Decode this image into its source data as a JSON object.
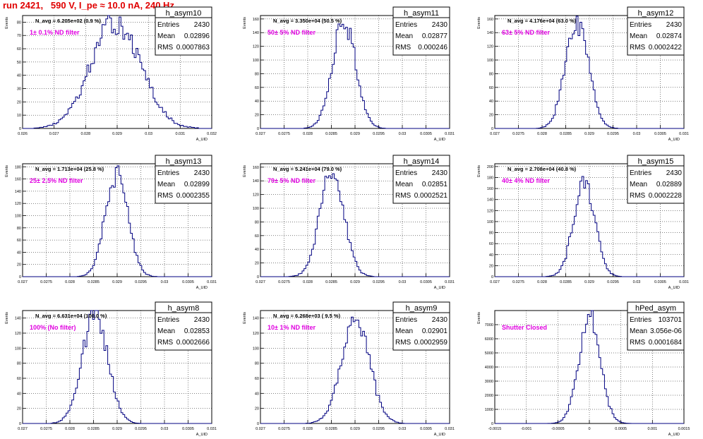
{
  "figure": {
    "title": "run 2421,   590 V, I_pe ≈ 10.0 nA, 240 Hz"
  },
  "chart_data": [
    {
      "type": "histogram",
      "name": "h_asym10",
      "navg": "N_avg = 6.205e+02 (0.9 %)",
      "filter": "1± 0.1% ND filter",
      "stats": {
        "Entries": "2430",
        "Mean": "0.02896",
        "RMS": "0.0007863"
      },
      "xlim": [
        0.026,
        0.032
      ],
      "ylim": [
        0,
        85
      ],
      "xticks": [
        "0.026",
        "0.027",
        "0.028",
        "0.029",
        "0.03",
        "0.031",
        "0.032"
      ],
      "yticks": [
        "0",
        "10",
        "20",
        "30",
        "40",
        "50",
        "60",
        "70",
        "80"
      ],
      "xlabel": "A_UID",
      "ylabel": "Events",
      "mean": 0.02896,
      "rms": 0.0007863,
      "peak": 80,
      "bins": 100
    },
    {
      "type": "histogram",
      "name": "h_asym11",
      "navg": "N_avg = 3.350e+04 (50.5 %)",
      "filter": "50± 5% ND filter",
      "stats": {
        "Entries": "2430",
        "Mean": "0.02877",
        "RMS": "0.000246"
      },
      "xlim": [
        0.027,
        0.031
      ],
      "ylim": [
        0,
        165
      ],
      "xticks": [
        "0.027",
        "0.0275",
        "0.028",
        "0.0285",
        "0.029",
        "0.0295",
        "0.03",
        "0.0305",
        "0.031"
      ],
      "yticks": [
        "0",
        "20",
        "40",
        "60",
        "80",
        "100",
        "120",
        "140",
        "160"
      ],
      "xlabel": "A_UID",
      "ylabel": "Events",
      "mean": 0.02877,
      "rms": 0.000246,
      "peak": 155,
      "bins": 100
    },
    {
      "type": "histogram",
      "name": "h_asym12",
      "navg": "N_avg = 4.176e+04 (63.0 %)",
      "filter": "63± 5% ND filter",
      "stats": {
        "Entries": "2430",
        "Mean": "0.02874",
        "RMS": "0.0002422"
      },
      "xlim": [
        0.027,
        0.031
      ],
      "ylim": [
        0,
        165
      ],
      "xticks": [
        "0.027",
        "0.0275",
        "0.028",
        "0.0285",
        "0.029",
        "0.0295",
        "0.03",
        "0.0305",
        "0.031"
      ],
      "yticks": [
        "0",
        "20",
        "40",
        "60",
        "80",
        "100",
        "120",
        "140",
        "160"
      ],
      "xlabel": "A_UID",
      "ylabel": "Events",
      "mean": 0.02874,
      "rms": 0.0002422,
      "peak": 158,
      "bins": 100
    },
    {
      "type": "histogram",
      "name": "h_asym13",
      "navg": "N_avg = 1.713e+04 (25.8 %)",
      "filter": "25± 2.5% ND filter",
      "stats": {
        "Entries": "2430",
        "Mean": "0.02899",
        "RMS": "0.0002355"
      },
      "xlim": [
        0.027,
        0.031
      ],
      "ylim": [
        0,
        185
      ],
      "xticks": [
        "0.027",
        "0.0275",
        "0.028",
        "0.0285",
        "0.029",
        "0.0295",
        "0.03",
        "0.0305",
        "0.031"
      ],
      "yticks": [
        "0",
        "20",
        "40",
        "60",
        "80",
        "100",
        "120",
        "140",
        "160",
        "180"
      ],
      "xlabel": "A_UID",
      "ylabel": "Events",
      "mean": 0.02899,
      "rms": 0.0002355,
      "peak": 168,
      "bins": 100
    },
    {
      "type": "histogram",
      "name": "h_asym14",
      "navg": "N_avg = 5.241e+04 (79.0 %)",
      "filter": "79± 5% ND filter",
      "stats": {
        "Entries": "2430",
        "Mean": "0.02851",
        "RMS": "0.0002521"
      },
      "xlim": [
        0.027,
        0.031
      ],
      "ylim": [
        0,
        165
      ],
      "xticks": [
        "0.027",
        "0.0275",
        "0.028",
        "0.0285",
        "0.029",
        "0.0295",
        "0.03",
        "0.0305",
        "0.031"
      ],
      "yticks": [
        "0",
        "20",
        "40",
        "60",
        "80",
        "100",
        "120",
        "140",
        "160"
      ],
      "xlabel": "A_UID",
      "ylabel": "Events",
      "mean": 0.02851,
      "rms": 0.0002521,
      "peak": 155,
      "bins": 100
    },
    {
      "type": "histogram",
      "name": "h_asym15",
      "navg": "N_avg = 2.708e+04 (40.8 %)",
      "filter": "40± 4% ND filter",
      "stats": {
        "Entries": "2430",
        "Mean": "0.02889",
        "RMS": "0.0002228"
      },
      "xlim": [
        0.027,
        0.031
      ],
      "ylim": [
        0,
        205
      ],
      "xticks": [
        "0.027",
        "0.0275",
        "0.028",
        "0.0285",
        "0.029",
        "0.0295",
        "0.03",
        "0.0305",
        "0.031"
      ],
      "yticks": [
        "0",
        "20",
        "40",
        "60",
        "80",
        "100",
        "120",
        "140",
        "160",
        "180",
        "200"
      ],
      "xlabel": "A_UID",
      "ylabel": "Events",
      "mean": 0.02889,
      "rms": 0.0002228,
      "peak": 175,
      "bins": 100
    },
    {
      "type": "histogram",
      "name": "h_asym8",
      "navg": "N_avg = 6.631e+04 (100.0 %)",
      "filter": "100% (No filter)",
      "stats": {
        "Entries": "2430",
        "Mean": "0.02853",
        "RMS": "0.0002666"
      },
      "xlim": [
        0.027,
        0.031
      ],
      "ylim": [
        0,
        150
      ],
      "xticks": [
        "0.027",
        "0.0275",
        "0.028",
        "0.0285",
        "0.029",
        "0.0295",
        "0.03",
        "0.0305",
        "0.031"
      ],
      "yticks": [
        "0",
        "20",
        "40",
        "60",
        "80",
        "100",
        "120",
        "140"
      ],
      "xlabel": "A_UID",
      "ylabel": "Events",
      "mean": 0.02853,
      "rms": 0.0002666,
      "peak": 148,
      "bins": 100
    },
    {
      "type": "histogram",
      "name": "h_asym9",
      "navg": "N_avg = 6.268e+03 ( 9.5 %)",
      "filter": "10± 1% ND filter",
      "stats": {
        "Entries": "2430",
        "Mean": "0.02901",
        "RMS": "0.0002959"
      },
      "xlim": [
        0.027,
        0.031
      ],
      "ylim": [
        0,
        150
      ],
      "xticks": [
        "0.027",
        "0.0275",
        "0.028",
        "0.0285",
        "0.029",
        "0.0295",
        "0.03",
        "0.0305",
        "0.031"
      ],
      "yticks": [
        "0",
        "20",
        "40",
        "60",
        "80",
        "100",
        "120",
        "140"
      ],
      "xlabel": "A_UID",
      "ylabel": "Events",
      "mean": 0.02901,
      "rms": 0.0002959,
      "peak": 138,
      "bins": 100
    },
    {
      "type": "histogram",
      "name": "hPed_asym",
      "navg": "",
      "filter": "Shutter Closed",
      "stats": {
        "Entries": "103701",
        "Mean": "3.056e-06",
        "RMS": "0.0001684"
      },
      "xlim": [
        -0.0015,
        0.0015
      ],
      "ylim": [
        0,
        8000
      ],
      "xticks": [
        "-0.0015",
        "-0.001",
        "-0.0005",
        "0",
        "0.0005",
        "0.001",
        "0.0015"
      ],
      "yticks": [
        "0",
        "1000",
        "2000",
        "3000",
        "4000",
        "5000",
        "6000",
        "7000"
      ],
      "xlabel": "A_UID",
      "ylabel": "Events",
      "mean": 3.056e-06,
      "rms": 0.0001684,
      "peak": 7600,
      "bins": 100
    }
  ],
  "colors": {
    "histogram_line": "#000080",
    "title_red": "#e00000",
    "filter_magenta": "#e000e0",
    "grid": "#000000"
  }
}
